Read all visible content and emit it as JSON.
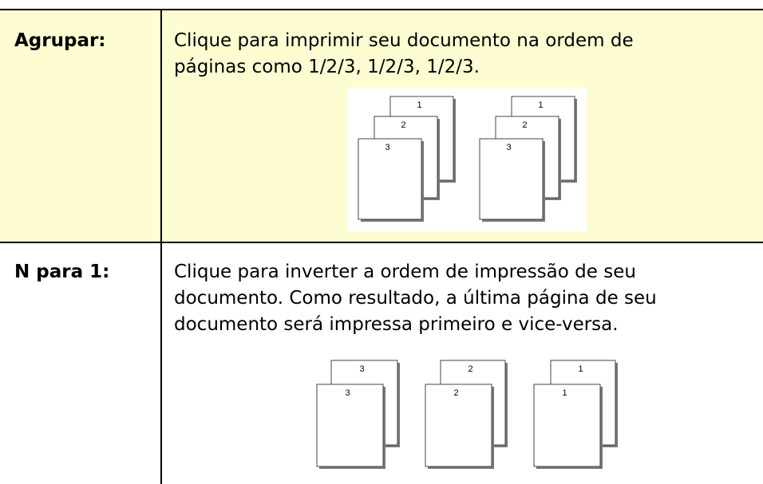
{
  "table": {
    "rows": [
      {
        "label": "Agrupar:",
        "description": [
          "Clique para imprimir seu documento na ordem de",
          "páginas como 1/2/3, 1/2/3, 1/2/3."
        ],
        "figure": [
          "1",
          "2",
          "3",
          "1",
          "2",
          "3"
        ]
      },
      {
        "label": "N para 1:",
        "description": [
          "Clique para inverter a ordem de impressão de seu",
          "documento. Como resultado, a última página de seu",
          "documento será impressa primeiro e vice-versa."
        ],
        "figure": [
          "3",
          "3",
          "2",
          "2",
          "1",
          "1"
        ]
      }
    ]
  }
}
